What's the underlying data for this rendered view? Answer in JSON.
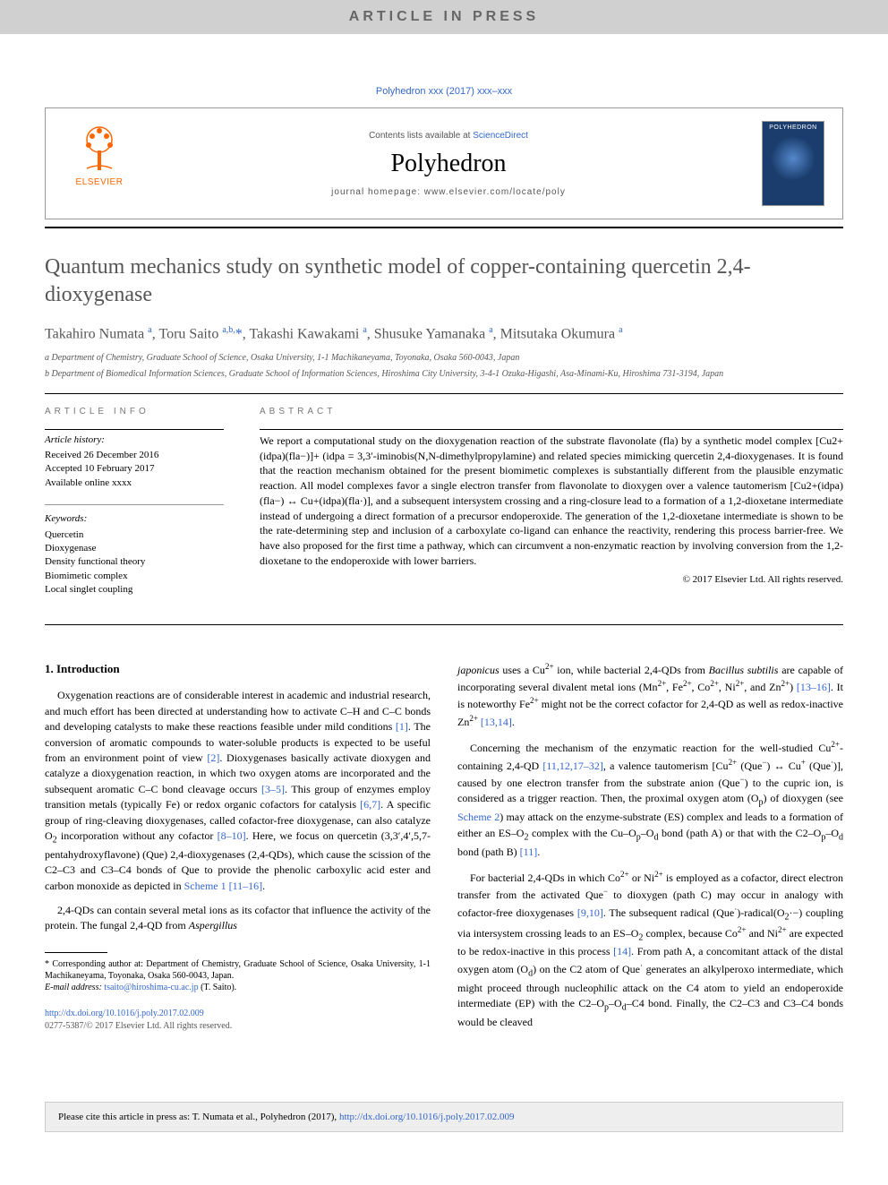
{
  "banner": {
    "text": "ARTICLE IN PRESS"
  },
  "citation_top": "Polyhedron xxx (2017) xxx–xxx",
  "header": {
    "contents_label": "Contents lists available at ",
    "sciencedirect": "ScienceDirect",
    "journal": "Polyhedron",
    "homepage_label": "journal homepage: ",
    "homepage_url": "www.elsevier.com/locate/poly",
    "elsevier": "ELSEVIER",
    "cover_title": "POLYHEDRON"
  },
  "title": "Quantum mechanics study on synthetic model of copper-containing quercetin 2,4-dioxygenase",
  "authors_html": "Takahiro Numata <sup>a</sup>, Toru Saito <sup>a,b,</sup><span class='crossmark'>*</span>, Takashi Kawakami <sup>a</sup>, Shusuke Yamanaka <sup>a</sup>, Mitsutaka Okumura <sup>a</sup>",
  "affiliations": {
    "a": "a Department of Chemistry, Graduate School of Science, Osaka University, 1-1 Machikaneyama, Toyonaka, Osaka 560-0043, Japan",
    "b": "b Department of Biomedical Information Sciences, Graduate School of Information Sciences, Hiroshima City University, 3-4-1 Ozuka-Higashi, Asa-Minami-Ku, Hiroshima 731-3194, Japan"
  },
  "info": {
    "heading": "article info",
    "history_label": "Article history:",
    "received": "Received 26 December 2016",
    "accepted": "Accepted 10 February 2017",
    "online": "Available online xxxx",
    "keywords_label": "Keywords:",
    "keywords": [
      "Quercetin",
      "Dioxygenase",
      "Density functional theory",
      "Biomimetic complex",
      "Local singlet coupling"
    ]
  },
  "abstract": {
    "heading": "abstract",
    "text": "We report a computational study on the dioxygenation reaction of the substrate flavonolate (fla) by a synthetic model complex [Cu2+(idpa)(fla−)]+ (idpa = 3,3′-iminobis(N,N-dimethylpropylamine) and related species mimicking quercetin 2,4-dioxygenases. It is found that the reaction mechanism obtained for the present biomimetic complexes is substantially different from the plausible enzymatic reaction. All model complexes favor a single electron transfer from flavonolate to dioxygen over a valence tautomerism [Cu2+(idpa)(fla−) ↔ Cu+(idpa)(fla·)], and a subsequent intersystem crossing and a ring-closure lead to a formation of a 1,2-dioxetane intermediate instead of undergoing a direct formation of a precursor endoperoxide. The generation of the 1,2-dioxetane intermediate is shown to be the rate-determining step and inclusion of a carboxylate co-ligand can enhance the reactivity, rendering this process barrier-free. We have also proposed for the first time a pathway, which can circumvent a non-enzymatic reaction by involving conversion from the 1,2-dioxetane to the endoperoxide with lower barriers.",
    "copyright": "© 2017 Elsevier Ltd. All rights reserved."
  },
  "body": {
    "intro_heading": "1. Introduction",
    "p1": "Oxygenation reactions are of considerable interest in academic and industrial research, and much effort has been directed at understanding how to activate C–H and C–C bonds and developing catalysts to make these reactions feasible under mild conditions [1]. The conversion of aromatic compounds to water-soluble products is expected to be useful from an environment point of view [2]. Dioxygenases basically activate dioxygen and catalyze a dioxygenation reaction, in which two oxygen atoms are incorporated and the subsequent aromatic C–C bond cleavage occurs [3–5]. This group of enzymes employ transition metals (typically Fe) or redox organic cofactors for catalysis [6,7]. A specific group of ring-cleaving dioxygenases, called cofactor-free dioxygenase, can also catalyze O2 incorporation without any cofactor [8–10]. Here, we focus on quercetin (3,3′,4′,5,7-pentahydroxyflavone) (Que) 2,4-dioxygenases (2,4-QDs), which cause the scission of the C2–C3 and C3–C4 bonds of Que to provide the phenolic carboxylic acid ester and carbon monoxide as depicted in Scheme 1 [11–16].",
    "p2": "2,4-QDs can contain several metal ions as its cofactor that influence the activity of the protein. The fungal 2,4-QD from Aspergillus",
    "p3": "japonicus uses a Cu2+ ion, while bacterial 2,4-QDs from Bacillus subtilis are capable of incorporating several divalent metal ions (Mn2+, Fe2+, Co2+, Ni2+, and Zn2+) [13–16]. It is noteworthy Fe2+ might not be the correct cofactor for 2,4-QD as well as redox-inactive Zn2+ [13,14].",
    "p4": "Concerning the mechanism of the enzymatic reaction for the well-studied Cu2+-containing 2,4-QD [11,12,17–32], a valence tautomerism [Cu2+ (Que−) ↔ Cu+ (Que·)], caused by one electron transfer from the substrate anion (Que−) to the cupric ion, is considered as a trigger reaction. Then, the proximal oxygen atom (Op) of dioxygen (see Scheme 2) may attack on the enzyme-substrate (ES) complex and leads to a formation of either an ES–O2 complex with the Cu–Op–Od bond (path A) or that with the C2–Op–Od bond (path B) [11].",
    "p5": "For bacterial 2,4-QDs in which Co2+ or Ni2+ is employed as a cofactor, direct electron transfer from the activated Que− to dioxygen (path C) may occur in analogy with cofactor-free dioxygenases [9,10]. The subsequent radical (Que·)-radical(O2·−) coupling via intersystem crossing leads to an ES–O2 complex, because Co2+ and Ni2+ are expected to be redox-inactive in this process [14]. From path A, a concomitant attack of the distal oxygen atom (Od) on the C2 atom of Que· generates an alkylperoxo intermediate, which might proceed through nucleophilic attack on the C4 atom to yield an endoperoxide intermediate (EP) with the C2–Op–Od–C4 bond. Finally, the C2–C3 and C3–C4 bonds would be cleaved"
  },
  "footnote": {
    "corresponding": "* Corresponding author at: Department of Chemistry, Graduate School of Science, Osaka University, 1-1 Machikaneyama, Toyonaka, Osaka 560-0043, Japan.",
    "email_label": "E-mail address: ",
    "email": "tsaito@hiroshima-cu.ac.jp",
    "email_person": " (T. Saito)."
  },
  "doi": "http://dx.doi.org/10.1016/j.poly.2017.02.009",
  "issn": "0277-5387/© 2017 Elsevier Ltd. All rights reserved.",
  "footer_cite": {
    "prefix": "Please cite this article in press as: T. Numata et al., Polyhedron (2017), ",
    "link": "http://dx.doi.org/10.1016/j.poly.2017.02.009"
  },
  "refs": {
    "r1": "[1]",
    "r2": "[2]",
    "r35": "[3–5]",
    "r67": "[6,7]",
    "r810": "[8–10]",
    "s1": "Scheme 1",
    "r1116": "[11–16]",
    "r1316": "[13–16]",
    "r1314": "[13,14]",
    "r1112": "[11,12,17–32]",
    "s2": "Scheme 2",
    "r11": "[11]",
    "r910": "[9,10]",
    "r14": "[14]"
  },
  "colors": {
    "banner_bg": "#d0d0d0",
    "banner_text": "#666666",
    "link": "#3366cc",
    "elsevier_orange": "#ff6600",
    "heading_grey": "#555555",
    "text": "#000000",
    "cover_bg": "#1a3d6d",
    "footer_bg": "#eeeeee"
  }
}
